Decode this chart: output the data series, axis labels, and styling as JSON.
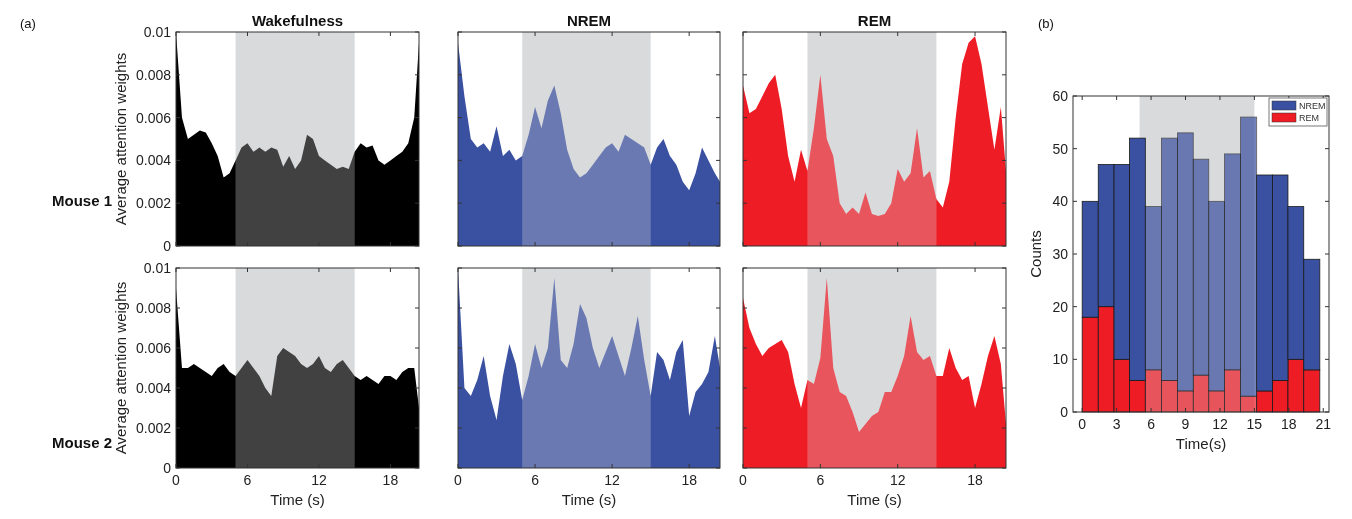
{
  "chart_data": [
    {
      "type": "area",
      "title": "Wakefulness",
      "ylabel": "Average attention weights",
      "annotations": [
        "(a)",
        "Mouse 1"
      ],
      "tick_labels": "y",
      "xlim": [
        0,
        20.4
      ],
      "ylim": [
        0,
        0.01
      ],
      "xticks": [
        0,
        6,
        12,
        18
      ],
      "yticks": [
        0,
        0.002,
        0.004,
        0.006,
        0.008,
        0.01
      ],
      "bands": [
        {
          "axis": "x",
          "from": 5,
          "to": 15,
          "color": "#d9dadc"
        }
      ],
      "x": [
        0,
        0.5,
        1,
        1.5,
        2,
        2.5,
        3,
        3.5,
        4,
        4.5,
        5,
        5.5,
        6,
        6.5,
        7,
        7.5,
        8,
        8.5,
        9,
        9.5,
        10,
        10.5,
        11,
        11.5,
        12,
        12.5,
        13,
        13.5,
        14,
        14.5,
        15,
        15.5,
        16,
        16.5,
        17,
        17.5,
        18,
        18.5,
        19,
        19.5,
        20,
        20.4
      ],
      "series": [
        {
          "color": "#000000",
          "values": [
            0.01,
            0.006,
            0.005,
            0.0052,
            0.0054,
            0.0053,
            0.0048,
            0.0042,
            0.0032,
            0.0034,
            0.004,
            0.0046,
            0.0048,
            0.0044,
            0.0046,
            0.0044,
            0.0046,
            0.0045,
            0.0037,
            0.0042,
            0.0036,
            0.004,
            0.0052,
            0.005,
            0.0042,
            0.004,
            0.0038,
            0.0036,
            0.0037,
            0.0036,
            0.0044,
            0.0048,
            0.0046,
            0.0047,
            0.004,
            0.0038,
            0.004,
            0.0042,
            0.0044,
            0.0048,
            0.006,
            0.0095
          ]
        }
      ]
    },
    {
      "type": "area",
      "title": "NREM",
      "tick_labels": false,
      "xlim": [
        0,
        20.4
      ],
      "ylim": [
        0,
        0.01
      ],
      "xticks": [
        0,
        6,
        12,
        18
      ],
      "yticks": [
        0,
        0.002,
        0.004,
        0.006,
        0.008,
        0.01
      ],
      "bands": [
        {
          "axis": "x",
          "from": 5,
          "to": 15,
          "color": "#d9dadc"
        }
      ],
      "x": [
        0,
        0.5,
        1,
        1.5,
        2,
        2.5,
        3,
        3.5,
        4,
        4.5,
        5,
        5.5,
        6,
        6.5,
        7,
        7.5,
        8,
        8.5,
        9,
        9.5,
        10,
        10.5,
        11,
        11.5,
        12,
        12.5,
        13,
        13.5,
        14,
        14.5,
        15,
        15.5,
        16,
        16.5,
        17,
        17.5,
        18,
        18.5,
        19,
        19.5,
        20,
        20.4
      ],
      "series": [
        {
          "color": "#3a50a0",
          "values": [
            0.0095,
            0.007,
            0.005,
            0.0046,
            0.0048,
            0.0044,
            0.0056,
            0.0042,
            0.0045,
            0.004,
            0.0042,
            0.0052,
            0.0065,
            0.0055,
            0.0068,
            0.0075,
            0.0062,
            0.0045,
            0.0036,
            0.0032,
            0.0034,
            0.0038,
            0.0042,
            0.0046,
            0.0048,
            0.0044,
            0.0052,
            0.005,
            0.0048,
            0.0046,
            0.0038,
            0.0046,
            0.005,
            0.0042,
            0.0038,
            0.003,
            0.0026,
            0.0034,
            0.0046,
            0.004,
            0.0034,
            0.003
          ]
        }
      ]
    },
    {
      "type": "area",
      "title": "REM",
      "tick_labels": false,
      "xlim": [
        0,
        20.4
      ],
      "ylim": [
        0,
        0.01
      ],
      "xticks": [
        0,
        6,
        12,
        18
      ],
      "yticks": [
        0,
        0.002,
        0.004,
        0.006,
        0.008,
        0.01
      ],
      "bands": [
        {
          "axis": "x",
          "from": 5,
          "to": 15,
          "color": "#d9dadc"
        }
      ],
      "x": [
        0,
        0.5,
        1,
        1.5,
        2,
        2.5,
        3,
        3.5,
        4,
        4.5,
        5,
        5.5,
        6,
        6.5,
        7,
        7.5,
        8,
        8.5,
        9,
        9.5,
        10,
        10.5,
        11,
        11.5,
        12,
        12.5,
        13,
        13.5,
        14,
        14.5,
        15,
        15.5,
        16,
        16.5,
        17,
        17.5,
        18,
        18.5,
        19,
        19.5,
        20,
        20.4
      ],
      "series": [
        {
          "color": "#ee1c25",
          "values": [
            0.0075,
            0.0062,
            0.0064,
            0.007,
            0.0076,
            0.008,
            0.0064,
            0.0042,
            0.003,
            0.0045,
            0.0035,
            0.0055,
            0.008,
            0.005,
            0.0042,
            0.002,
            0.0015,
            0.0018,
            0.0015,
            0.0025,
            0.0015,
            0.0014,
            0.0015,
            0.002,
            0.0036,
            0.003,
            0.0034,
            0.0055,
            0.0032,
            0.0035,
            0.0022,
            0.0018,
            0.003,
            0.006,
            0.0085,
            0.0095,
            0.0098,
            0.0085,
            0.0065,
            0.0045,
            0.0065,
            0.0035
          ]
        }
      ]
    },
    {
      "type": "area",
      "xlabel": "Time (s)",
      "ylabel": "Average attention weights",
      "annotations": [
        "Mouse 2"
      ],
      "xlim": [
        0,
        20.4
      ],
      "ylim": [
        0,
        0.01
      ],
      "xticks": [
        0,
        6,
        12,
        18
      ],
      "yticks": [
        0,
        0.002,
        0.004,
        0.006,
        0.008,
        0.01
      ],
      "bands": [
        {
          "axis": "x",
          "from": 5,
          "to": 15,
          "color": "#d9dadc"
        }
      ],
      "x": [
        0,
        0.5,
        1,
        1.5,
        2,
        2.5,
        3,
        3.5,
        4,
        4.5,
        5,
        5.5,
        6,
        6.5,
        7,
        7.5,
        8,
        8.5,
        9,
        9.5,
        10,
        10.5,
        11,
        11.5,
        12,
        12.5,
        13,
        13.5,
        14,
        14.5,
        15,
        15.5,
        16,
        16.5,
        17,
        17.5,
        18,
        18.5,
        19,
        19.5,
        20,
        20.4
      ],
      "series": [
        {
          "color": "#000000",
          "values": [
            0.009,
            0.005,
            0.005,
            0.0052,
            0.005,
            0.0048,
            0.0046,
            0.005,
            0.0052,
            0.0048,
            0.0046,
            0.005,
            0.0054,
            0.005,
            0.0046,
            0.004,
            0.0036,
            0.0056,
            0.006,
            0.0058,
            0.0056,
            0.0052,
            0.005,
            0.0052,
            0.0056,
            0.005,
            0.0048,
            0.0052,
            0.0054,
            0.005,
            0.0046,
            0.0044,
            0.0046,
            0.0044,
            0.0042,
            0.0046,
            0.0046,
            0.0044,
            0.0048,
            0.005,
            0.005,
            0.003
          ]
        }
      ]
    },
    {
      "type": "area",
      "xlabel": "Time (s)",
      "tick_labels": "x",
      "xlim": [
        0,
        20.4
      ],
      "ylim": [
        0,
        0.01
      ],
      "xticks": [
        0,
        6,
        12,
        18
      ],
      "yticks": [
        0,
        0.002,
        0.004,
        0.006,
        0.008,
        0.01
      ],
      "bands": [
        {
          "axis": "x",
          "from": 5,
          "to": 15,
          "color": "#d9dadc"
        }
      ],
      "x": [
        0,
        0.5,
        1,
        1.5,
        2,
        2.5,
        3,
        3.5,
        4,
        4.5,
        5,
        5.5,
        6,
        6.5,
        7,
        7.5,
        8,
        8.5,
        9,
        9.5,
        10,
        10.5,
        11,
        11.5,
        12,
        12.5,
        13,
        13.5,
        14,
        14.5,
        15,
        15.5,
        16,
        16.5,
        17,
        17.5,
        18,
        18.5,
        19,
        19.5,
        20,
        20.4
      ],
      "series": [
        {
          "color": "#3a50a0",
          "values": [
            0.01,
            0.004,
            0.0036,
            0.0044,
            0.0056,
            0.0036,
            0.0024,
            0.0046,
            0.0062,
            0.0052,
            0.0034,
            0.0046,
            0.0062,
            0.005,
            0.006,
            0.0095,
            0.0054,
            0.005,
            0.0062,
            0.0082,
            0.0075,
            0.006,
            0.005,
            0.0058,
            0.0066,
            0.0056,
            0.0046,
            0.006,
            0.0076,
            0.0054,
            0.0036,
            0.0058,
            0.0054,
            0.0044,
            0.0058,
            0.0064,
            0.0026,
            0.0038,
            0.0042,
            0.0048,
            0.0066,
            0.005
          ]
        }
      ]
    },
    {
      "type": "area",
      "xlabel": "Time (s)",
      "tick_labels": "x",
      "xlim": [
        0,
        20.4
      ],
      "ylim": [
        0,
        0.01
      ],
      "xticks": [
        0,
        6,
        12,
        18
      ],
      "yticks": [
        0,
        0.002,
        0.004,
        0.006,
        0.008,
        0.01
      ],
      "bands": [
        {
          "axis": "x",
          "from": 5,
          "to": 15,
          "color": "#d9dadc"
        }
      ],
      "x": [
        0,
        0.5,
        1,
        1.5,
        2,
        2.5,
        3,
        3.5,
        4,
        4.5,
        5,
        5.5,
        6,
        6.5,
        7,
        7.5,
        8,
        8.5,
        9,
        9.5,
        10,
        10.5,
        11,
        11.5,
        12,
        12.5,
        13,
        13.5,
        14,
        14.5,
        15,
        15.5,
        16,
        16.5,
        17,
        17.5,
        18,
        18.5,
        19,
        19.5,
        20,
        20.4
      ],
      "series": [
        {
          "color": "#ee1c25",
          "values": [
            0.0085,
            0.007,
            0.0062,
            0.0056,
            0.006,
            0.0062,
            0.0064,
            0.0058,
            0.0042,
            0.003,
            0.0044,
            0.0042,
            0.0055,
            0.0095,
            0.005,
            0.0038,
            0.0036,
            0.0028,
            0.0018,
            0.0022,
            0.0026,
            0.0028,
            0.0038,
            0.0038,
            0.0046,
            0.0056,
            0.0076,
            0.0058,
            0.0054,
            0.0056,
            0.0046,
            0.0046,
            0.006,
            0.005,
            0.0044,
            0.0046,
            0.003,
            0.0042,
            0.0056,
            0.0066,
            0.0052,
            0.0022
          ]
        }
      ]
    },
    {
      "type": "bar",
      "xlabel": "Time(s)",
      "ylabel": "Counts",
      "annotations": [
        "(b)"
      ],
      "stacked": true,
      "legend": "top right",
      "xlim": [
        -0.8,
        21.5
      ],
      "ylim": [
        0,
        60
      ],
      "xticks": [
        0,
        3,
        6,
        9,
        12,
        15,
        18,
        21
      ],
      "yticks": [
        0,
        10,
        20,
        30,
        40,
        50,
        60
      ],
      "bands": [
        {
          "axis": "x",
          "from": 5,
          "to": 15,
          "color": "#d9dadc"
        }
      ],
      "x": [
        0.7,
        2.1,
        3.45,
        4.8,
        6.2,
        7.6,
        9,
        10.35,
        11.7,
        13.1,
        14.5,
        15.9,
        17.25,
        18.6,
        20
      ],
      "series": [
        {
          "name": "REM",
          "color": "#ee1c25",
          "values": [
            18,
            20,
            10,
            6,
            8,
            6,
            4,
            7,
            4,
            8,
            3,
            4,
            6,
            10,
            8
          ]
        },
        {
          "name": "NREM",
          "color": "#3a50a0",
          "values": [
            22,
            27,
            37,
            46,
            31,
            46,
            49,
            41,
            36,
            41,
            53,
            41,
            39,
            29,
            21
          ]
        }
      ]
    }
  ]
}
